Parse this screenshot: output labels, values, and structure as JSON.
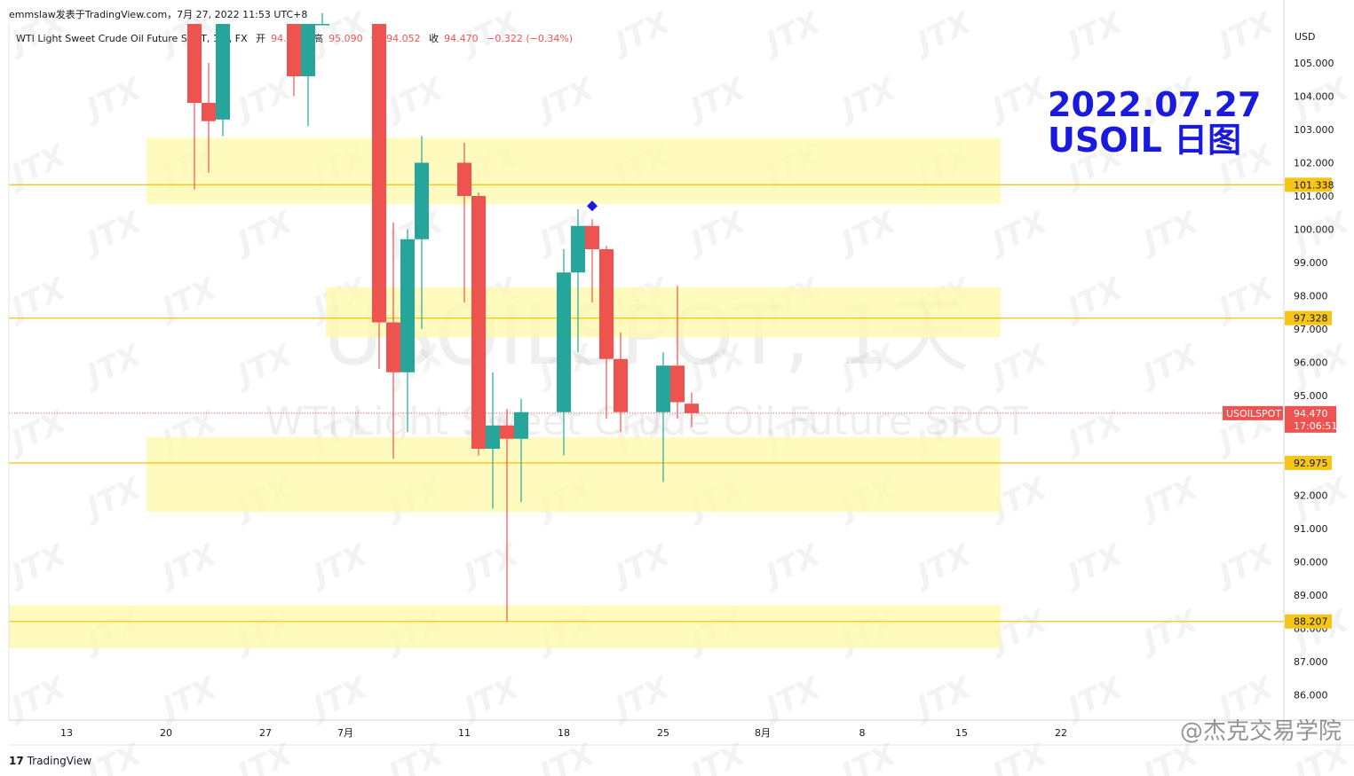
{
  "header": {
    "publisher": "emmslaw发表于TradingView.com，7月 27, 2022 11:53 UTC+8"
  },
  "legend": {
    "symbol": "WTI Light Sweet Crude Oil Future SPOT, 1天, FX",
    "open_label": "开",
    "open": "94.755",
    "high_label": "高",
    "high": "95.090",
    "low_label": "低",
    "low": "94.052",
    "close_label": "收",
    "close": "94.470",
    "change": "−0.322 (−0.34%)"
  },
  "headline": {
    "line1": "2022.07.27",
    "line2": "USOIL 日图"
  },
  "watermark": {
    "main": "USOILSPOT, 1天",
    "sub": "WTI Light Sweet Crude Oil Future SPOT",
    "brand": "JTX"
  },
  "footer": {
    "brand_logo": "17",
    "brand": "TradingView",
    "weibo": "@杰克交易学院"
  },
  "colors": {
    "up": "#26a69a",
    "down": "#ef5350",
    "zone": "#fff9a8",
    "level_line": "#f5c518",
    "headline": "#1a1adf"
  },
  "chart_data": {
    "type": "candlestick",
    "currency": "USD",
    "y_axis_ticks": [
      "105.000",
      "104.000",
      "103.000",
      "102.000",
      "101.000",
      "100.000",
      "99.000",
      "98.000",
      "97.000",
      "96.000",
      "95.000",
      "92.000",
      "91.000",
      "90.000",
      "89.000",
      "88.000",
      "87.000",
      "86.000"
    ],
    "ylim": [
      85.2,
      106.8
    ],
    "x_axis_ticks": [
      "13",
      "20",
      "27",
      "7月",
      "11",
      "18",
      "25",
      "8月",
      "8",
      "15",
      "22"
    ],
    "levels": [
      {
        "value": 101.338,
        "label": "101.338"
      },
      {
        "value": 97.328,
        "label": "97.328"
      },
      {
        "value": 92.975,
        "label": "92.975"
      },
      {
        "value": 88.207,
        "label": "88.207"
      }
    ],
    "zones": [
      {
        "from": 100.75,
        "to": 102.75
      },
      {
        "from": 96.75,
        "to": 98.25
      },
      {
        "from": 91.5,
        "to": 93.75
      },
      {
        "from": 87.4,
        "to": 88.7
      }
    ],
    "current_price": {
      "symbol": "USOILSPOT",
      "value": "94.470",
      "countdown": "17:06:51"
    },
    "diamond_marker": {
      "date": "2022-07-20",
      "value": 100.7
    },
    "candles": [
      {
        "date": "2022-06-22",
        "o": 106.5,
        "h": 106.9,
        "l": 101.2,
        "c": 103.8
      },
      {
        "date": "2022-06-23",
        "o": 103.8,
        "h": 105.0,
        "l": 101.7,
        "c": 103.25
      },
      {
        "date": "2022-06-24",
        "o": 103.3,
        "h": 106.9,
        "l": 102.8,
        "c": 106.9
      },
      {
        "date": "2022-06-29",
        "o": 106.9,
        "h": 106.9,
        "l": 104.0,
        "c": 104.6
      },
      {
        "date": "2022-06-30",
        "o": 104.6,
        "h": 106.9,
        "l": 103.1,
        "c": 106.9
      },
      {
        "date": "2022-07-01",
        "o": 106.9,
        "h": 106.9,
        "l": 106.5,
        "c": 106.9
      },
      {
        "date": "2022-07-05",
        "o": 106.9,
        "h": 106.9,
        "l": 95.8,
        "c": 97.2
      },
      {
        "date": "2022-07-06",
        "o": 97.2,
        "h": 100.2,
        "l": 93.1,
        "c": 95.7
      },
      {
        "date": "2022-07-07",
        "o": 95.7,
        "h": 100.0,
        "l": 93.9,
        "c": 99.7
      },
      {
        "date": "2022-07-08",
        "o": 99.7,
        "h": 102.8,
        "l": 97.0,
        "c": 102.0
      },
      {
        "date": "2022-07-11",
        "o": 102.0,
        "h": 102.6,
        "l": 97.8,
        "c": 101.0
      },
      {
        "date": "2022-07-12",
        "o": 101.0,
        "h": 101.1,
        "l": 93.2,
        "c": 93.4
      },
      {
        "date": "2022-07-13",
        "o": 93.4,
        "h": 95.7,
        "l": 91.6,
        "c": 94.1
      },
      {
        "date": "2022-07-14",
        "o": 94.1,
        "h": 94.6,
        "l": 88.2,
        "c": 93.7
      },
      {
        "date": "2022-07-15",
        "o": 93.7,
        "h": 94.9,
        "l": 91.8,
        "c": 94.5
      },
      {
        "date": "2022-07-18",
        "o": 94.5,
        "h": 99.4,
        "l": 93.2,
        "c": 98.7
      },
      {
        "date": "2022-07-19",
        "o": 98.7,
        "h": 100.6,
        "l": 96.3,
        "c": 100.1
      },
      {
        "date": "2022-07-20",
        "o": 100.1,
        "h": 100.3,
        "l": 97.8,
        "c": 99.4
      },
      {
        "date": "2022-07-21",
        "o": 99.4,
        "h": 99.5,
        "l": 94.3,
        "c": 96.1
      },
      {
        "date": "2022-07-22",
        "o": 96.1,
        "h": 96.9,
        "l": 93.9,
        "c": 94.5
      },
      {
        "date": "2022-07-25",
        "o": 94.5,
        "h": 96.3,
        "l": 92.4,
        "c": 95.9
      },
      {
        "date": "2022-07-26",
        "o": 95.9,
        "h": 98.3,
        "l": 94.3,
        "c": 94.8
      },
      {
        "date": "2022-07-27",
        "o": 94.755,
        "h": 95.09,
        "l": 94.052,
        "c": 94.47
      }
    ]
  }
}
